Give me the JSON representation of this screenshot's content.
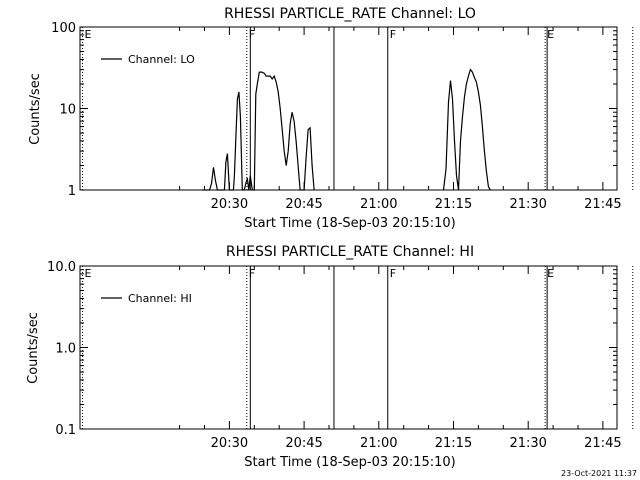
{
  "chart_data": [
    {
      "type": "line",
      "title": "RHESSI PARTICLE_RATE Channel: LO",
      "xlabel": "Start Time (18-Sep-03 20:15:10)",
      "ylabel": "Counts/sec",
      "xlim": [
        "20:15:10",
        "22:03:00"
      ],
      "ylim": [
        1,
        100
      ],
      "y_scale": "log",
      "y_ticks": [
        "1",
        "10",
        "100"
      ],
      "x_ticks": [
        "20:30",
        "20:45",
        "21:00",
        "21:15",
        "21:30",
        "21:45"
      ],
      "x_tick_minutes": [
        30,
        45,
        60,
        75,
        90,
        105
      ],
      "legend": {
        "position": "top-left",
        "entries": [
          "Channel: LO"
        ]
      },
      "series": [
        {
          "name": "Channel: LO",
          "x_minutes": [
            24.5,
            26.0,
            26.4,
            26.8,
            27.2,
            27.6,
            28.0,
            28.5,
            29.0,
            29.3,
            29.6,
            30.0,
            30.4,
            30.8,
            31.0,
            31.3,
            31.6,
            31.9,
            32.2,
            32.6,
            33.0,
            33.3,
            33.6,
            33.9,
            34.2,
            34.6,
            35.0,
            35.3,
            35.6,
            36.0,
            36.5,
            37.0,
            37.4,
            37.8,
            38.2,
            38.6,
            39.0,
            39.4,
            39.8,
            40.2,
            40.6,
            41.0,
            41.4,
            41.8,
            42.2,
            42.6,
            43.0,
            43.4,
            43.8,
            44.2,
            44.6,
            45.0,
            45.4,
            45.8,
            46.2,
            46.6,
            47.0
          ],
          "values": [
            1,
            1,
            1.2,
            1.9,
            1.3,
            1,
            1,
            1,
            1,
            2.2,
            2.8,
            1,
            1,
            1,
            1.5,
            4.5,
            13,
            16,
            8,
            1,
            1,
            1.2,
            1.4,
            1,
            1.5,
            1,
            1,
            15,
            20,
            28,
            28,
            27,
            25,
            25,
            25,
            23,
            25,
            21,
            16,
            10,
            5.5,
            3,
            2,
            3,
            6.5,
            9,
            7,
            4,
            2,
            1,
            1,
            1,
            2.5,
            5.5,
            5.8,
            2,
            1
          ]
        },
        {
          "name": "Channel: LO (2)",
          "x_minutes": [
            73.0,
            73.5,
            74.0,
            74.4,
            74.8,
            75.2,
            75.6,
            76.0,
            76.4,
            76.8,
            77.2,
            77.6,
            78.0,
            78.4,
            78.8,
            79.2,
            79.6,
            80.0,
            80.4,
            80.8,
            81.2,
            81.6,
            82.0,
            82.4
          ],
          "values": [
            1,
            1.8,
            12,
            22,
            13,
            4,
            1.5,
            1,
            4,
            8,
            14,
            20,
            25,
            30,
            28,
            24,
            21,
            16,
            11,
            6,
            3,
            1.7,
            1.1,
            1
          ]
        }
      ],
      "annotations": [
        {
          "text": "E",
          "x_minutes": 0.5,
          "style": "dotted"
        },
        {
          "text": "F",
          "x_minutes": 33.5,
          "style": "dotted"
        },
        {
          "text": "",
          "x_minutes": 34.2,
          "style": "solid"
        },
        {
          "text": "",
          "x_minutes": 51.0,
          "style": "solid"
        },
        {
          "text": "F",
          "x_minutes": 61.8,
          "style": "solid"
        },
        {
          "text": "E",
          "x_minutes": 93.4,
          "style": "dotted"
        },
        {
          "text": "",
          "x_minutes": 93.8,
          "style": "solid"
        },
        {
          "text": "",
          "x_minutes": 111.0,
          "style": "dotted"
        }
      ]
    },
    {
      "type": "line",
      "title": "RHESSI PARTICLE_RATE Channel: HI",
      "xlabel": "Start Time (18-Sep-03 20:15:10)",
      "ylabel": "Counts/sec",
      "xlim": [
        "20:15:10",
        "22:03:00"
      ],
      "ylim": [
        0.1,
        10
      ],
      "y_scale": "log",
      "y_ticks": [
        "0.1",
        "1.0",
        "10.0"
      ],
      "x_ticks": [
        "20:30",
        "20:45",
        "21:00",
        "21:15",
        "21:30",
        "21:45"
      ],
      "x_tick_minutes": [
        30,
        45,
        60,
        75,
        90,
        105
      ],
      "legend": {
        "position": "top-left",
        "entries": [
          "Channel: HI"
        ]
      },
      "series": [
        {
          "name": "Channel: HI",
          "x_minutes": [],
          "values": []
        }
      ],
      "annotations": [
        {
          "text": "E",
          "x_minutes": 0.5,
          "style": "dotted"
        },
        {
          "text": "F",
          "x_minutes": 33.5,
          "style": "dotted"
        },
        {
          "text": "",
          "x_minutes": 34.2,
          "style": "solid"
        },
        {
          "text": "",
          "x_minutes": 51.0,
          "style": "solid"
        },
        {
          "text": "F",
          "x_minutes": 61.8,
          "style": "solid"
        },
        {
          "text": "E",
          "x_minutes": 93.4,
          "style": "dotted"
        },
        {
          "text": "",
          "x_minutes": 93.8,
          "style": "solid"
        },
        {
          "text": "",
          "x_minutes": 111.0,
          "style": "dotted"
        }
      ]
    }
  ],
  "timestamp": "23-Oct-2021 11:37"
}
